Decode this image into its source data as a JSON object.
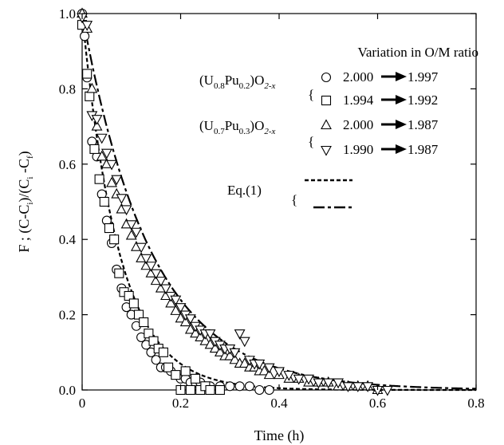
{
  "chart_data": {
    "type": "scatter",
    "title": "",
    "xlabel": "Time (h)",
    "ylabel": "F ; (C-C_i)/(C_i-C_f)",
    "xlim": [
      0,
      0.8
    ],
    "ylim": [
      0,
      1.0
    ],
    "x_ticks": [
      "0",
      "0.2",
      "0.4",
      "0.6",
      "0.8"
    ],
    "y_ticks": [
      "0.0",
      "0.2",
      "0.4",
      "0.6",
      "0.8",
      "1.0"
    ],
    "legend_title": "Variation in O/M ratio",
    "legend_groups": [
      {
        "label": "(U0.8Pu0.2)O2-x",
        "parts": [
          "(U",
          "0.8",
          "Pu",
          "0.2",
          ")O",
          "2-x"
        ]
      },
      {
        "label": "(U0.7Pu0.3)O2-x",
        "parts": [
          "(U",
          "0.7",
          "Pu",
          "0.3",
          ")O",
          "2-x"
        ]
      }
    ],
    "eq_label": "Eq.(1)",
    "series": [
      {
        "name": "2.000→1.997",
        "marker": "circle",
        "from": "2.000",
        "to": "1.997",
        "x": [
          0.0,
          0.005,
          0.01,
          0.02,
          0.03,
          0.04,
          0.05,
          0.06,
          0.07,
          0.08,
          0.09,
          0.1,
          0.11,
          0.12,
          0.13,
          0.14,
          0.15,
          0.16,
          0.17,
          0.18,
          0.19,
          0.2,
          0.21,
          0.22,
          0.23,
          0.24,
          0.25,
          0.26,
          0.28,
          0.3,
          0.32,
          0.34,
          0.36,
          0.38
        ],
        "y": [
          1.0,
          0.94,
          0.83,
          0.66,
          0.62,
          0.52,
          0.45,
          0.39,
          0.32,
          0.27,
          0.22,
          0.2,
          0.17,
          0.14,
          0.12,
          0.1,
          0.08,
          0.06,
          0.06,
          0.05,
          0.04,
          0.03,
          0.03,
          0.02,
          0.02,
          0.02,
          0.01,
          0.01,
          0.01,
          0.01,
          0.01,
          0.01,
          0.0,
          0.0
        ]
      },
      {
        "name": "1.994→1.992",
        "marker": "square",
        "from": "1.994",
        "to": "1.992",
        "x": [
          0.0,
          0.01,
          0.015,
          0.025,
          0.035,
          0.045,
          0.055,
          0.065,
          0.075,
          0.085,
          0.095,
          0.105,
          0.115,
          0.125,
          0.135,
          0.145,
          0.155,
          0.165,
          0.175,
          0.19,
          0.2,
          0.21,
          0.22,
          0.23,
          0.24,
          0.25,
          0.26,
          0.28
        ],
        "y": [
          0.97,
          0.84,
          0.78,
          0.64,
          0.56,
          0.5,
          0.43,
          0.4,
          0.31,
          0.26,
          0.25,
          0.23,
          0.2,
          0.18,
          0.15,
          0.13,
          0.11,
          0.1,
          0.06,
          0.04,
          0.0,
          0.05,
          0.0,
          0.03,
          0.0,
          0.01,
          0.0,
          0.0
        ]
      },
      {
        "name": "2.000→1.987",
        "marker": "triangle-up",
        "from": "2.000",
        "to": "1.987",
        "x": [
          0.0,
          0.01,
          0.02,
          0.03,
          0.04,
          0.05,
          0.06,
          0.07,
          0.08,
          0.09,
          0.1,
          0.11,
          0.12,
          0.13,
          0.14,
          0.15,
          0.16,
          0.17,
          0.18,
          0.19,
          0.2,
          0.21,
          0.22,
          0.23,
          0.24,
          0.25,
          0.26,
          0.27,
          0.28,
          0.29,
          0.3,
          0.31,
          0.32,
          0.33,
          0.34,
          0.35,
          0.36,
          0.37,
          0.38,
          0.4,
          0.42,
          0.44,
          0.46,
          0.48,
          0.5,
          0.52,
          0.54,
          0.56,
          0.58,
          0.6
        ],
        "y": [
          1.0,
          0.96,
          0.8,
          0.7,
          0.62,
          0.6,
          0.55,
          0.52,
          0.48,
          0.44,
          0.41,
          0.38,
          0.35,
          0.33,
          0.31,
          0.29,
          0.27,
          0.25,
          0.23,
          0.21,
          0.19,
          0.18,
          0.16,
          0.15,
          0.14,
          0.13,
          0.12,
          0.11,
          0.1,
          0.09,
          0.09,
          0.08,
          0.07,
          0.07,
          0.06,
          0.06,
          0.05,
          0.05,
          0.04,
          0.04,
          0.03,
          0.03,
          0.02,
          0.02,
          0.02,
          0.01,
          0.01,
          0.01,
          0.01,
          0.0
        ]
      },
      {
        "name": "1.990→1.987",
        "marker": "triangle-down",
        "from": "1.990",
        "to": "1.987",
        "x": [
          0.0,
          0.01,
          0.02,
          0.03,
          0.04,
          0.05,
          0.06,
          0.07,
          0.08,
          0.09,
          0.1,
          0.11,
          0.12,
          0.13,
          0.14,
          0.15,
          0.16,
          0.17,
          0.18,
          0.19,
          0.2,
          0.21,
          0.22,
          0.23,
          0.24,
          0.25,
          0.26,
          0.27,
          0.28,
          0.29,
          0.3,
          0.31,
          0.32,
          0.33,
          0.34,
          0.35,
          0.36,
          0.38,
          0.4,
          0.42,
          0.44,
          0.46,
          0.48,
          0.5,
          0.52,
          0.54,
          0.56,
          0.58,
          0.6,
          0.62
        ],
        "y": [
          0.99,
          0.97,
          0.73,
          0.72,
          0.67,
          0.63,
          0.6,
          0.56,
          0.51,
          0.48,
          0.44,
          0.42,
          0.38,
          0.35,
          0.33,
          0.31,
          0.29,
          0.27,
          0.25,
          0.24,
          0.22,
          0.2,
          0.19,
          0.17,
          0.16,
          0.15,
          0.15,
          0.13,
          0.12,
          0.11,
          0.11,
          0.1,
          0.15,
          0.13,
          0.08,
          0.07,
          0.07,
          0.06,
          0.05,
          0.04,
          0.03,
          0.03,
          0.02,
          0.02,
          0.02,
          0.01,
          0.01,
          0.01,
          0.0,
          0.0
        ]
      }
    ],
    "fit_curves": [
      {
        "style": "dotted",
        "tau": 0.075
      },
      {
        "style": "dashed",
        "tau": 0.14
      }
    ],
    "grid": false
  }
}
